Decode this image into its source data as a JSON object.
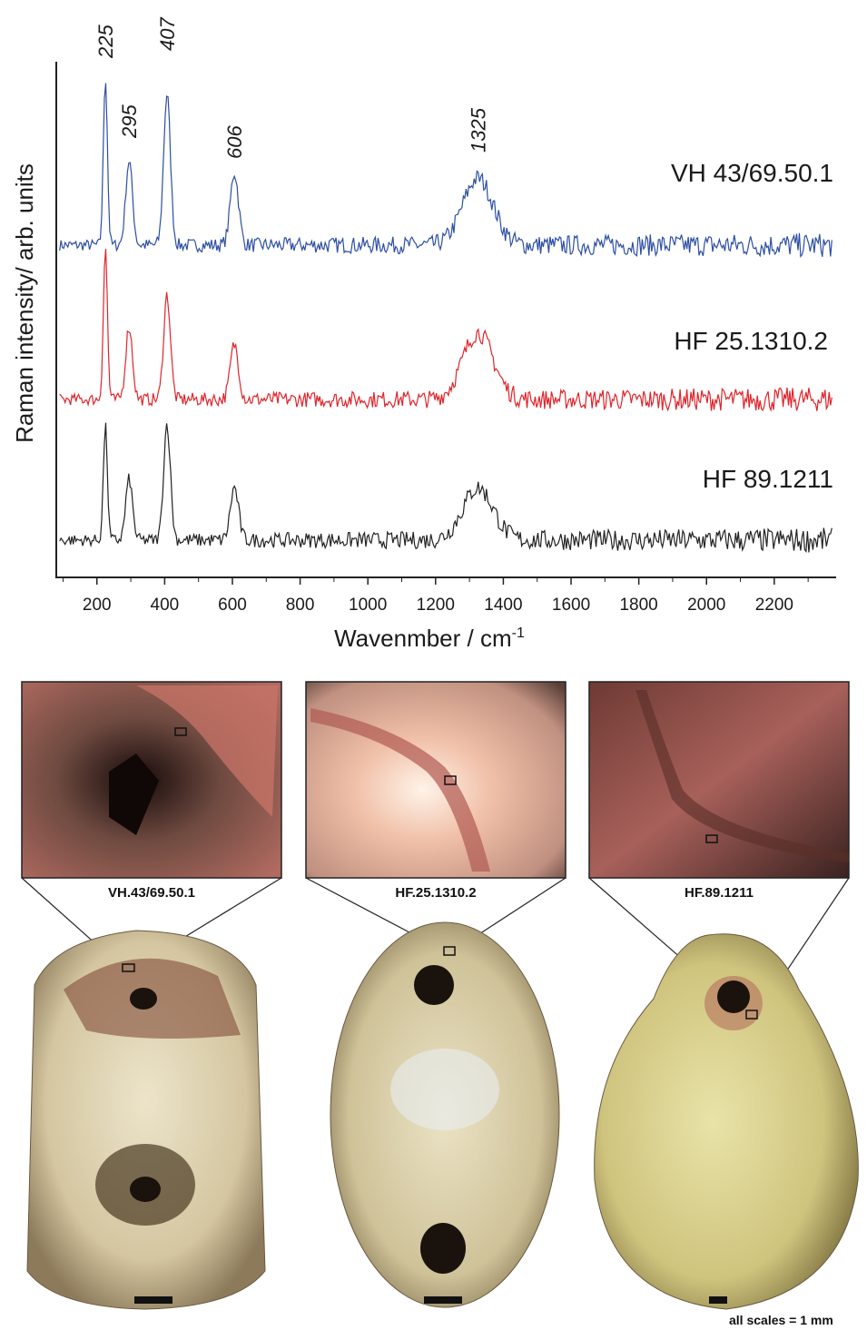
{
  "chart_data": {
    "type": "line",
    "xlabel": "Wavenmber / cm",
    "xlabel_sup": "-1",
    "ylabel": "Raman intensity/ arb. units",
    "xlim": [
      80,
      2380
    ],
    "xticks": [
      200,
      400,
      600,
      800,
      1000,
      1200,
      1400,
      1600,
      1800,
      2000,
      2200
    ],
    "grid": false,
    "peaks": [
      {
        "x": 225,
        "label": "225"
      },
      {
        "x": 295,
        "label": "295"
      },
      {
        "x": 407,
        "label": "407"
      },
      {
        "x": 606,
        "label": "606"
      },
      {
        "x": 1325,
        "label": "1325"
      }
    ],
    "series": [
      {
        "name": "VH 43/69.50.1",
        "color": "#2c4ea3",
        "baseline": 0.0,
        "peaks": [
          [
            225,
            5.8
          ],
          [
            295,
            2.9
          ],
          [
            407,
            5.2
          ],
          [
            606,
            2.5
          ],
          [
            1325,
            2.3
          ]
        ]
      },
      {
        "name": "HF 25.1310.2",
        "color": "#e0242a",
        "baseline": 0.0,
        "peaks": [
          [
            225,
            5.2
          ],
          [
            295,
            2.5
          ],
          [
            407,
            3.6
          ],
          [
            606,
            1.9
          ],
          [
            1325,
            2.3
          ]
        ]
      },
      {
        "name": "HF 89.1211",
        "color": "#222222",
        "baseline": 0.0,
        "peaks": [
          [
            225,
            3.9
          ],
          [
            295,
            2.1
          ],
          [
            407,
            4.0
          ],
          [
            606,
            1.8
          ],
          [
            1325,
            1.8
          ]
        ]
      }
    ]
  },
  "photos": [
    {
      "label": "VH.43/69.50.1",
      "bg": "#7a4a40"
    },
    {
      "label": "HF.25.1310.2",
      "bg": "#e8c8b8"
    },
    {
      "label": "HF.89.1211",
      "bg": "#8a4e44"
    }
  ],
  "beads": [
    {
      "color": "#d9ccb0"
    },
    {
      "color": "#d7cba8"
    },
    {
      "color": "#d6cf96"
    }
  ],
  "scale_note": "all scales = 1 mm"
}
